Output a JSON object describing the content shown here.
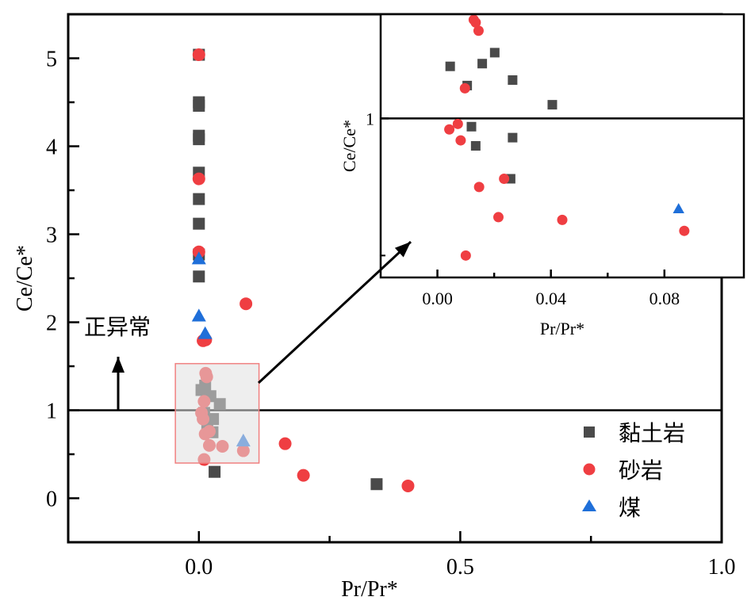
{
  "chart_data": [
    {
      "id": "main",
      "type": "scatter",
      "title": "",
      "xlabel": "Pr/Pr*",
      "ylabel": "Ce/Ce*",
      "xlim": [
        -0.25,
        1.0
      ],
      "ylim": [
        -0.5,
        5.5
      ],
      "xticks": [
        0.0,
        0.5,
        1.0
      ],
      "xtick_labels": [
        "0.0",
        "0.5",
        "1.0"
      ],
      "yticks": [
        0,
        1,
        2,
        3,
        4,
        5
      ],
      "ytick_labels": [
        "0",
        "1",
        "2",
        "3",
        "4",
        "5"
      ],
      "grid": false,
      "reference_line_y": 1,
      "annotation": {
        "text": "正异常",
        "arrow": "up",
        "position": "left, above y=1"
      },
      "highlight_box": {
        "x": [
          -0.045,
          0.115
        ],
        "y": [
          0.4,
          1.53
        ]
      },
      "legend": {
        "placement": "bottom-right"
      },
      "series": [
        {
          "name": "黏土岩",
          "marker": "square",
          "color": "#4a4a4a",
          "points": [
            [
              0.0,
              5.04
            ],
            [
              0.0,
              4.5
            ],
            [
              0.0,
              4.46
            ],
            [
              0.0,
              4.12
            ],
            [
              0.0,
              4.08
            ],
            [
              0.0,
              3.7
            ],
            [
              0.0,
              3.4
            ],
            [
              0.0,
              3.12
            ],
            [
              0.0,
              2.77
            ],
            [
              0.0,
              2.52
            ],
            [
              0.005,
              1.23
            ],
            [
              0.012,
              1.28
            ],
            [
              0.022,
              1.16
            ],
            [
              0.04,
              1.07
            ],
            [
              0.01,
              0.97
            ],
            [
              0.016,
              0.85
            ],
            [
              0.027,
              0.9
            ],
            [
              0.026,
              0.75
            ],
            [
              0.03,
              0.3
            ],
            [
              0.34,
              0.16
            ]
          ]
        },
        {
          "name": "砂岩",
          "marker": "circle",
          "color": "#ef3e42",
          "points": [
            [
              0.0,
              5.04
            ],
            [
              0.0,
              3.63
            ],
            [
              0.0,
              2.8
            ],
            [
              0.09,
              2.21
            ],
            [
              0.008,
              1.79
            ],
            [
              0.013,
              1.8
            ],
            [
              0.013,
              1.42
            ],
            [
              0.015,
              1.38
            ],
            [
              0.01,
              1.1
            ],
            [
              0.005,
              0.97
            ],
            [
              0.008,
              0.9
            ],
            [
              0.012,
              0.73
            ],
            [
              0.02,
              0.76
            ],
            [
              0.02,
              0.6
            ],
            [
              0.045,
              0.59
            ],
            [
              0.085,
              0.54
            ],
            [
              0.01,
              0.44
            ],
            [
              0.165,
              0.62
            ],
            [
              0.2,
              0.26
            ],
            [
              0.4,
              0.14
            ]
          ]
        },
        {
          "name": "煤",
          "marker": "triangle",
          "color": "#1f6fd9",
          "points": [
            [
              0.0,
              2.72
            ],
            [
              0.0,
              2.07
            ],
            [
              0.012,
              1.87
            ],
            [
              0.085,
              0.65
            ]
          ]
        }
      ]
    },
    {
      "id": "inset",
      "type": "scatter",
      "title": "",
      "xlabel": "Pr/Pr*",
      "ylabel": "Ce/Ce*",
      "xlim": [
        -0.02,
        0.108
      ],
      "ylim": [
        0.42,
        1.38
      ],
      "xticks": [
        0.0,
        0.04,
        0.08
      ],
      "xtick_labels": [
        "0.00",
        "0.04",
        "0.08"
      ],
      "yticks": [
        1
      ],
      "ytick_labels": [
        "1"
      ],
      "grid": false,
      "reference_line_y": 1,
      "series": [
        {
          "name": "黏土岩",
          "marker": "square",
          "color": "#4a4a4a",
          "points": [
            [
              0.0045,
              1.19
            ],
            [
              0.0105,
              1.12
            ],
            [
              0.0158,
              1.2
            ],
            [
              0.0202,
              1.24
            ],
            [
              0.0265,
              1.14
            ],
            [
              0.0405,
              1.05
            ],
            [
              0.012,
              0.97
            ],
            [
              0.0135,
              0.9
            ],
            [
              0.0265,
              0.93
            ],
            [
              0.0258,
              0.78
            ]
          ]
        },
        {
          "name": "砂岩",
          "marker": "circle",
          "color": "#ef3e42",
          "points": [
            [
              0.0128,
              1.36
            ],
            [
              0.0135,
              1.35
            ],
            [
              0.0145,
              1.32
            ],
            [
              0.0097,
              1.11
            ],
            [
              0.0072,
              0.98
            ],
            [
              0.0042,
              0.96
            ],
            [
              0.0082,
              0.92
            ],
            [
              0.0147,
              0.75
            ],
            [
              0.0235,
              0.78
            ],
            [
              0.0215,
              0.64
            ],
            [
              0.044,
              0.63
            ],
            [
              0.087,
              0.59
            ],
            [
              0.01,
              0.5
            ]
          ]
        },
        {
          "name": "煤",
          "marker": "triangle",
          "color": "#1f6fd9",
          "points": [
            [
              0.085,
              0.67
            ]
          ]
        }
      ]
    }
  ],
  "legend": {
    "items": [
      {
        "label": "黏土岩",
        "marker": "square",
        "color": "#4a4a4a"
      },
      {
        "label": "砂岩",
        "marker": "circle",
        "color": "#ef3e42"
      },
      {
        "label": "煤",
        "marker": "triangle",
        "color": "#1f6fd9"
      }
    ]
  },
  "annotation": {
    "text": "正异常"
  },
  "colors": {
    "box_fill": "#e0e0e0",
    "box_stroke": "#f08080"
  }
}
